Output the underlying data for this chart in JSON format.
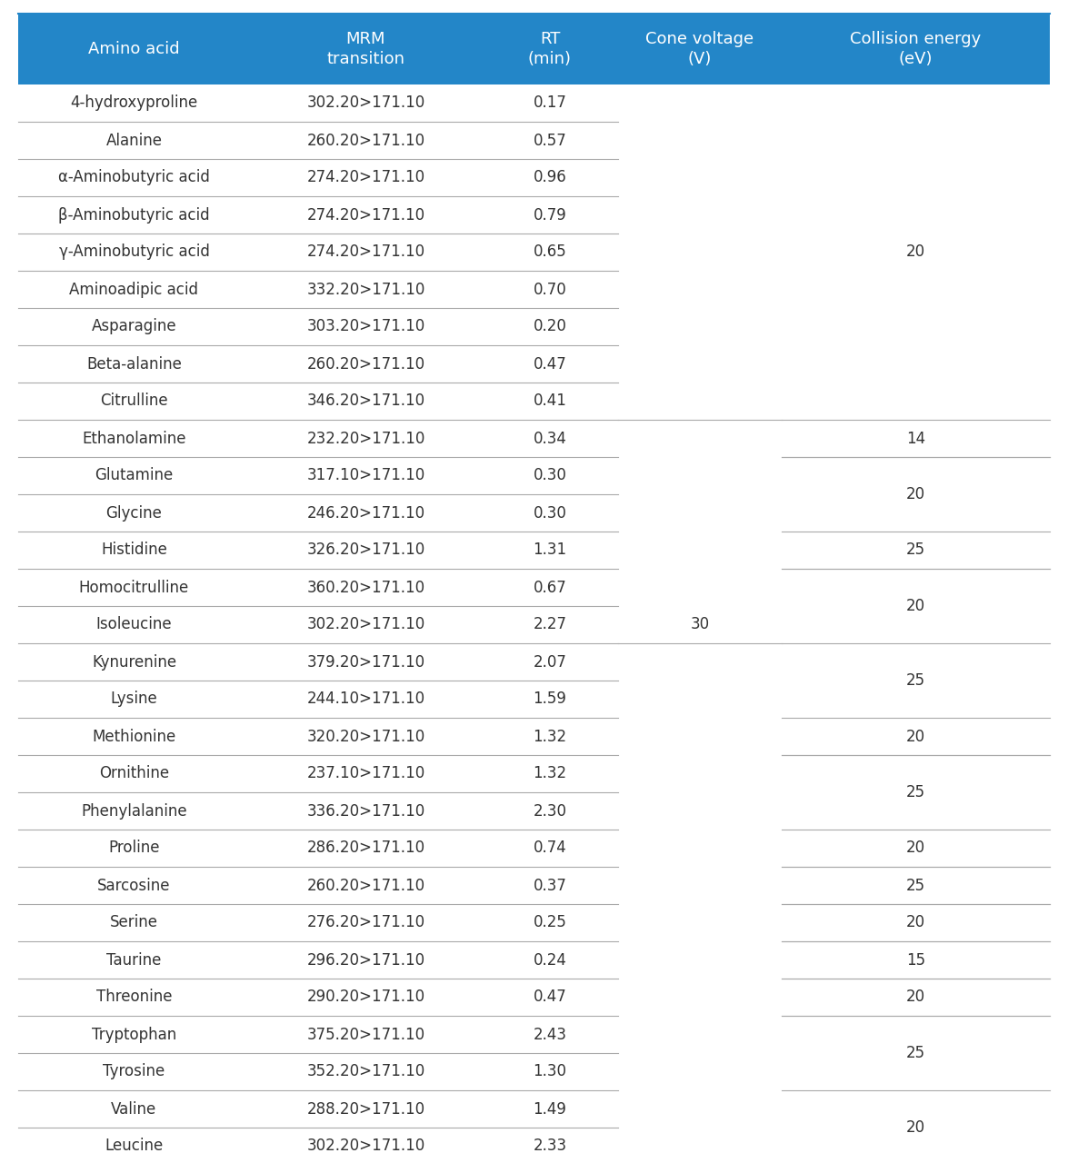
{
  "header_bg": "#2386c8",
  "header_text_color": "#ffffff",
  "text_color": "#333333",
  "line_color": "#aaaaaa",
  "columns": [
    "Amino acid",
    "MRM\ntransition",
    "RT\n(min)",
    "Cone voltage\n(V)",
    "Collision energy\n(eV)"
  ],
  "rows": [
    [
      "4-hydroxyproline",
      "302.20>171.10",
      "0.17"
    ],
    [
      "Alanine",
      "260.20>171.10",
      "0.57"
    ],
    [
      "α-Aminobutyric acid",
      "274.20>171.10",
      "0.96"
    ],
    [
      "β-Aminobutyric acid",
      "274.20>171.10",
      "0.79"
    ],
    [
      "γ-Aminobutyric acid",
      "274.20>171.10",
      "0.65"
    ],
    [
      "Aminoadipic acid",
      "332.20>171.10",
      "0.70"
    ],
    [
      "Asparagine",
      "303.20>171.10",
      "0.20"
    ],
    [
      "Beta-alanine",
      "260.20>171.10",
      "0.47"
    ],
    [
      "Citrulline",
      "346.20>171.10",
      "0.41"
    ],
    [
      "Ethanolamine",
      "232.20>171.10",
      "0.34"
    ],
    [
      "Glutamine",
      "317.10>171.10",
      "0.30"
    ],
    [
      "Glycine",
      "246.20>171.10",
      "0.30"
    ],
    [
      "Histidine",
      "326.20>171.10",
      "1.31"
    ],
    [
      "Homocitrulline",
      "360.20>171.10",
      "0.67"
    ],
    [
      "Isoleucine",
      "302.20>171.10",
      "2.27"
    ],
    [
      "Kynurenine",
      "379.20>171.10",
      "2.07"
    ],
    [
      "Lysine",
      "244.10>171.10",
      "1.59"
    ],
    [
      "Methionine",
      "320.20>171.10",
      "1.32"
    ],
    [
      "Ornithine",
      "237.10>171.10",
      "1.32"
    ],
    [
      "Phenylalanine",
      "336.20>171.10",
      "2.30"
    ],
    [
      "Proline",
      "286.20>171.10",
      "0.74"
    ],
    [
      "Sarcosine",
      "260.20>171.10",
      "0.37"
    ],
    [
      "Serine",
      "276.20>171.10",
      "0.25"
    ],
    [
      "Taurine",
      "296.20>171.10",
      "0.24"
    ],
    [
      "Threonine",
      "290.20>171.10",
      "0.47"
    ],
    [
      "Tryptophan",
      "375.20>171.10",
      "2.43"
    ],
    [
      "Tyrosine",
      "352.20>171.10",
      "1.30"
    ],
    [
      "Valine",
      "288.20>171.10",
      "1.49"
    ],
    [
      "Leucine",
      "302.20>171.10",
      "2.33"
    ]
  ],
  "cone_voltage_value": "30",
  "cone_voltage_row": 14,
  "collision_energy_groups": [
    {
      "rows": [
        0,
        8
      ],
      "value": "20",
      "line_above": false,
      "line_below": false
    },
    {
      "rows": [
        9,
        9
      ],
      "value": "14",
      "line_above": true,
      "line_below": true
    },
    {
      "rows": [
        10,
        11
      ],
      "value": "20",
      "line_above": true,
      "line_below": false
    },
    {
      "rows": [
        12,
        12
      ],
      "value": "25",
      "line_above": true,
      "line_below": true
    },
    {
      "rows": [
        13,
        14
      ],
      "value": "20",
      "line_above": true,
      "line_below": false
    },
    {
      "rows": [
        15,
        16
      ],
      "value": "25",
      "line_above": true,
      "line_below": false
    },
    {
      "rows": [
        17,
        17
      ],
      "value": "20",
      "line_above": true,
      "line_below": true
    },
    {
      "rows": [
        18,
        19
      ],
      "value": "25",
      "line_above": true,
      "line_below": false
    },
    {
      "rows": [
        20,
        20
      ],
      "value": "20",
      "line_above": true,
      "line_below": true
    },
    {
      "rows": [
        21,
        21
      ],
      "value": "25",
      "line_above": true,
      "line_below": true
    },
    {
      "rows": [
        22,
        22
      ],
      "value": "20",
      "line_above": true,
      "line_below": true
    },
    {
      "rows": [
        23,
        23
      ],
      "value": "15",
      "line_above": true,
      "line_below": true
    },
    {
      "rows": [
        24,
        24
      ],
      "value": "20",
      "line_above": true,
      "line_below": true
    },
    {
      "rows": [
        25,
        26
      ],
      "value": "25",
      "line_above": true,
      "line_below": false
    },
    {
      "rows": [
        27,
        28
      ],
      "value": "20",
      "line_above": true,
      "line_below": false
    }
  ]
}
